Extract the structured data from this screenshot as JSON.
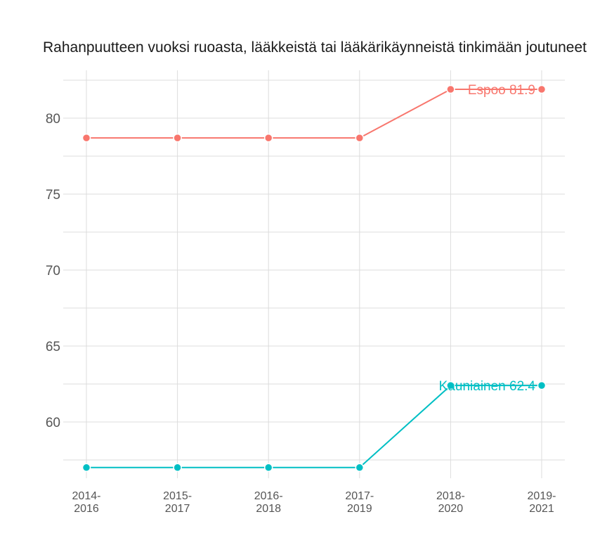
{
  "chart_data": {
    "type": "line",
    "title": "Rahanpuutteen vuoksi ruoasta, lääkkeistä tai lääkärikäynneistä tinkimään joutuneet",
    "xlabel": "",
    "ylabel": "",
    "categories": [
      [
        "2014-",
        "2016"
      ],
      [
        "2015-",
        "2017"
      ],
      [
        "2016-",
        "2018"
      ],
      [
        "2017-",
        "2019"
      ],
      [
        "2018-",
        "2020"
      ],
      [
        "2019-",
        "2021"
      ]
    ],
    "yticks": [
      60,
      65,
      70,
      75,
      80
    ],
    "ylim": [
      56.5,
      83.5
    ],
    "grid": true,
    "legend": "none",
    "series": [
      {
        "name": "Espoo",
        "color": "#F8766D",
        "values": [
          78.7,
          78.7,
          78.7,
          78.7,
          81.9,
          81.9
        ],
        "end_label": "Espoo 81.9"
      },
      {
        "name": "Kauniainen",
        "color": "#00BFC4",
        "values": [
          57.0,
          57.0,
          57.0,
          57.0,
          62.4,
          62.4
        ],
        "end_label": "Kauniainen 62.4"
      }
    ]
  }
}
